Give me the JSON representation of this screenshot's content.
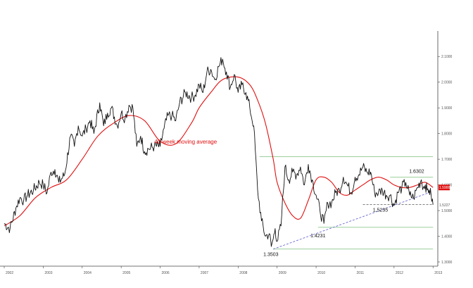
{
  "colors": {
    "price": "#111111",
    "moving_average": "#e01010",
    "trendline": "#6a6ad0",
    "support_level": "#9ccf9c",
    "axis": "#444444",
    "price_tag": "#e01010"
  },
  "chart_data": {
    "type": "line",
    "title": "",
    "xlabel": "",
    "ylabel": "",
    "grid": false,
    "x_tick_labels": [
      "2002",
      "2003",
      "2004",
      "2005",
      "2006",
      "2007",
      "2008",
      "2009",
      "2010",
      "2011",
      "2012",
      "2013"
    ],
    "y_tick_labels": [
      "2.1000",
      "2.0000",
      "1.9000",
      "1.8000",
      "1.7000",
      "1.6000",
      "1.5000",
      "1.4000",
      "1.3000"
    ],
    "ylim": [
      1.3,
      2.15
    ],
    "xlim": [
      2002.0,
      2013.05
    ],
    "price_tag": "1.5900",
    "last_price_label": "1.5227",
    "series": [
      {
        "name": "",
        "kind": "weekly close",
        "x": [
          2002.0,
          2002.15,
          2002.3,
          2002.4,
          2002.5,
          2002.6,
          2002.75,
          2002.9,
          2003.0,
          2003.1,
          2003.2,
          2003.3,
          2003.4,
          2003.55,
          2003.7,
          2003.8,
          2003.9,
          2004.0,
          2004.1,
          2004.2,
          2004.3,
          2004.45,
          2004.55,
          2004.65,
          2004.75,
          2004.9,
          2005.0,
          2005.1,
          2005.2,
          2005.3,
          2005.4,
          2005.5,
          2005.6,
          2005.7,
          2005.85,
          2006.0,
          2006.1,
          2006.2,
          2006.3,
          2006.4,
          2006.5,
          2006.65,
          2006.8,
          2006.9,
          2007.0,
          2007.1,
          2007.2,
          2007.3,
          2007.4,
          2007.5,
          2007.6,
          2007.7,
          2007.8,
          2007.9,
          2008.0,
          2008.1,
          2008.2,
          2008.3,
          2008.4,
          2008.5,
          2008.6,
          2008.7,
          2008.8,
          2008.85,
          2008.9,
          2008.95,
          2009.0,
          2009.1,
          2009.2,
          2009.3,
          2009.4,
          2009.5,
          2009.6,
          2009.7,
          2009.8,
          2009.9,
          2010.0,
          2010.1,
          2010.2,
          2010.3,
          2010.4,
          2010.5,
          2010.6,
          2010.7,
          2010.8,
          2010.9,
          2011.0,
          2011.1,
          2011.2,
          2011.3,
          2011.4,
          2011.5,
          2011.6,
          2011.7,
          2011.8,
          2011.9,
          2012.0,
          2012.1,
          2012.2,
          2012.3,
          2012.4,
          2012.5,
          2012.6,
          2012.7,
          2012.75,
          2012.8,
          2012.85,
          2012.9,
          2012.95,
          2013.0
        ],
        "y": [
          1.45,
          1.43,
          1.51,
          1.55,
          1.54,
          1.56,
          1.58,
          1.61,
          1.6,
          1.57,
          1.65,
          1.66,
          1.61,
          1.64,
          1.79,
          1.75,
          1.83,
          1.79,
          1.82,
          1.85,
          1.8,
          1.92,
          1.83,
          1.88,
          1.9,
          1.83,
          1.88,
          1.86,
          1.91,
          1.9,
          1.75,
          1.79,
          1.73,
          1.74,
          1.75,
          1.75,
          1.82,
          1.87,
          1.87,
          1.85,
          1.92,
          1.96,
          1.94,
          1.95,
          1.99,
          1.96,
          2.04,
          2.05,
          2.01,
          2.06,
          2.09,
          2.04,
          1.98,
          2.03,
          1.96,
          1.99,
          1.96,
          1.9,
          1.83,
          1.58,
          1.46,
          1.4,
          1.41,
          1.36,
          1.39,
          1.43,
          1.38,
          1.44,
          1.67,
          1.62,
          1.65,
          1.64,
          1.67,
          1.6,
          1.68,
          1.62,
          1.56,
          1.5,
          1.45,
          1.53,
          1.53,
          1.57,
          1.58,
          1.63,
          1.6,
          1.57,
          1.63,
          1.64,
          1.67,
          1.65,
          1.65,
          1.57,
          1.57,
          1.58,
          1.56,
          1.56,
          1.52,
          1.57,
          1.59,
          1.61,
          1.56,
          1.55,
          1.59,
          1.62,
          1.59,
          1.6,
          1.58,
          1.58,
          1.56,
          1.5227
        ]
      },
      {
        "name": "40 week moving average",
        "x": [
          2002.0,
          2002.4,
          2002.8,
          2003.2,
          2003.6,
          2004.0,
          2004.4,
          2004.8,
          2005.2,
          2005.6,
          2006.0,
          2006.4,
          2006.8,
          2007.0,
          2007.3,
          2007.6,
          2008.0,
          2008.3,
          2008.5,
          2008.7,
          2008.9,
          2009.0,
          2009.2,
          2009.4,
          2009.6,
          2009.8,
          2010.0,
          2010.2,
          2010.4,
          2010.6,
          2010.8,
          2011.0,
          2011.2,
          2011.4,
          2011.6,
          2011.8,
          2012.0,
          2012.2,
          2012.4,
          2012.6,
          2012.8,
          2013.0
        ],
        "y": [
          1.44,
          1.48,
          1.55,
          1.59,
          1.62,
          1.7,
          1.79,
          1.84,
          1.87,
          1.85,
          1.77,
          1.76,
          1.84,
          1.9,
          1.96,
          2.01,
          2.02,
          1.99,
          1.93,
          1.84,
          1.7,
          1.61,
          1.53,
          1.48,
          1.47,
          1.54,
          1.62,
          1.63,
          1.61,
          1.57,
          1.56,
          1.58,
          1.6,
          1.62,
          1.63,
          1.62,
          1.6,
          1.59,
          1.59,
          1.6,
          1.61,
          1.59
        ]
      }
    ],
    "annotations": [
      {
        "text": "40 week moving average",
        "x": 2005.85,
        "y": 1.76
      },
      {
        "text": "1.3503",
        "x": 2008.9,
        "y": 1.3503
      },
      {
        "text": "1.4231",
        "x": 2010.0,
        "y": 1.4231
      },
      {
        "text": "1.5235",
        "x": 2011.6,
        "y": 1.5235
      },
      {
        "text": "1.6302",
        "x": 2012.35,
        "y": 1.6302
      }
    ],
    "support_levels": [
      {
        "y": 1.71,
        "x_start": 2008.55,
        "x_end": 2013.0
      },
      {
        "y": 1.63,
        "x_start": 2011.9,
        "x_end": 2013.0
      },
      {
        "y": 1.435,
        "x_start": 2010.05,
        "x_end": 2013.0
      },
      {
        "y": 1.3503,
        "x_start": 2008.9,
        "x_end": 2013.0
      }
    ],
    "trendline": {
      "x": [
        2008.9,
        2012.9
      ],
      "y": [
        1.35,
        1.57
      ]
    },
    "dashed_level": {
      "y": 1.5235,
      "x_start": 2011.2,
      "x_end": 2013.0
    }
  }
}
